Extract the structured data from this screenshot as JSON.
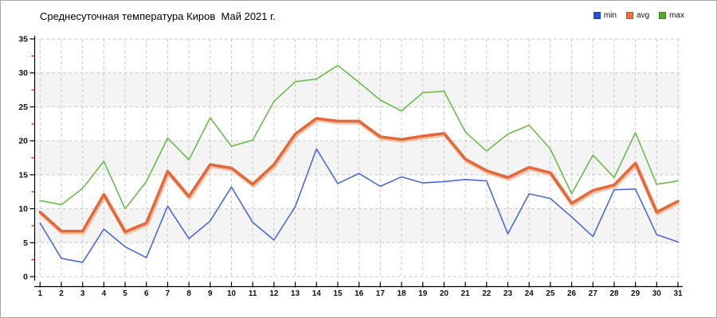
{
  "header": {
    "title": "Среднесуточная температура Киров  Май 2021 г."
  },
  "legend": {
    "items": [
      {
        "label": "min",
        "color": "#2a4fdd"
      },
      {
        "label": "avg",
        "color": "#e9763e"
      },
      {
        "label": "max",
        "color": "#4cb022"
      }
    ]
  },
  "colors": {
    "band_gray": "#f4f4f4",
    "gridline": "#cccccc",
    "axis": "#000000",
    "minor_tick_red": "#cc1111",
    "avg_halo": "#f3c4a8"
  },
  "chart_data": {
    "type": "line",
    "title": "Среднесуточная температура Киров  Май 2021 г.",
    "x": [
      1,
      2,
      3,
      4,
      5,
      6,
      7,
      8,
      9,
      10,
      11,
      12,
      13,
      14,
      15,
      16,
      17,
      18,
      19,
      20,
      21,
      22,
      23,
      24,
      25,
      26,
      27,
      28,
      29,
      30,
      31
    ],
    "xlabel": "",
    "ylabel": "",
    "ylim": [
      0,
      35
    ],
    "yticks": [
      0,
      5,
      10,
      15,
      20,
      25,
      30,
      35
    ],
    "y_minor_tick_step": 2.5,
    "grid": true,
    "grid_style": "dashed",
    "shaded_bands": [
      [
        5,
        10
      ],
      [
        15,
        20
      ],
      [
        25,
        30
      ]
    ],
    "legend_position": "top-right",
    "series": [
      {
        "name": "min",
        "color": "#4a68d8",
        "width": 1.6,
        "values": [
          7.9,
          2.7,
          2.1,
          7.0,
          4.4,
          2.8,
          10.4,
          5.6,
          8.2,
          13.2,
          8.0,
          5.4,
          10.3,
          18.8,
          13.7,
          15.2,
          13.3,
          14.7,
          13.8,
          14.0,
          14.3,
          14.1,
          6.3,
          12.2,
          11.5,
          8.8,
          5.9,
          12.8,
          12.9,
          6.2,
          5.1
        ]
      },
      {
        "name": "avg",
        "color": "#e2693b",
        "width": 3.6,
        "values": [
          9.5,
          6.7,
          6.7,
          12.1,
          6.6,
          7.9,
          15.5,
          11.8,
          16.5,
          16.0,
          13.6,
          16.5,
          21.0,
          23.3,
          22.9,
          22.9,
          20.6,
          20.2,
          20.7,
          21.1,
          17.3,
          15.6,
          14.6,
          16.1,
          15.3,
          10.8,
          12.7,
          13.5,
          16.7,
          9.5,
          11.1
        ]
      },
      {
        "name": "max",
        "color": "#6abc4a",
        "width": 1.6,
        "values": [
          11.2,
          10.6,
          13.0,
          17.0,
          10.0,
          14.0,
          20.4,
          17.2,
          23.4,
          19.2,
          20.1,
          25.8,
          28.7,
          29.1,
          31.1,
          28.6,
          26.0,
          24.4,
          27.1,
          27.3,
          21.3,
          18.5,
          21.0,
          22.3,
          18.8,
          12.2,
          17.9,
          14.6,
          21.2,
          13.6,
          14.1
        ]
      }
    ]
  }
}
